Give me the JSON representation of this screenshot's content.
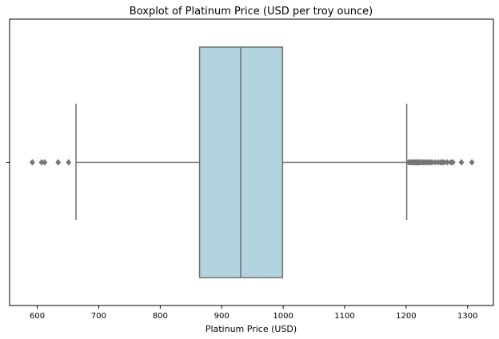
{
  "chart_data": {
    "type": "boxplot",
    "title": "Boxplot of Platinum Price (USD per troy ounce)",
    "xlabel": "Platinum Price (USD)",
    "ylabel": "",
    "xlim": [
      555,
      1342
    ],
    "xticks": [
      600,
      700,
      800,
      900,
      1000,
      1100,
      1200,
      1300
    ],
    "grid": false,
    "box": {
      "whisker_low": 663,
      "q1": 864,
      "median": 931,
      "q3": 999,
      "whisker_high": 1201
    },
    "outliers_low": [
      592,
      607,
      612,
      634,
      651
    ],
    "outliers_high": [
      1204,
      1207,
      1210,
      1212,
      1214,
      1216,
      1218,
      1220,
      1222,
      1225,
      1228,
      1230,
      1233,
      1236,
      1239,
      1242,
      1247,
      1252,
      1256,
      1259,
      1262,
      1267,
      1273,
      1276,
      1290,
      1307
    ],
    "colors": {
      "box_fill": "#b3d4df",
      "line": "#6e6e6e"
    }
  }
}
